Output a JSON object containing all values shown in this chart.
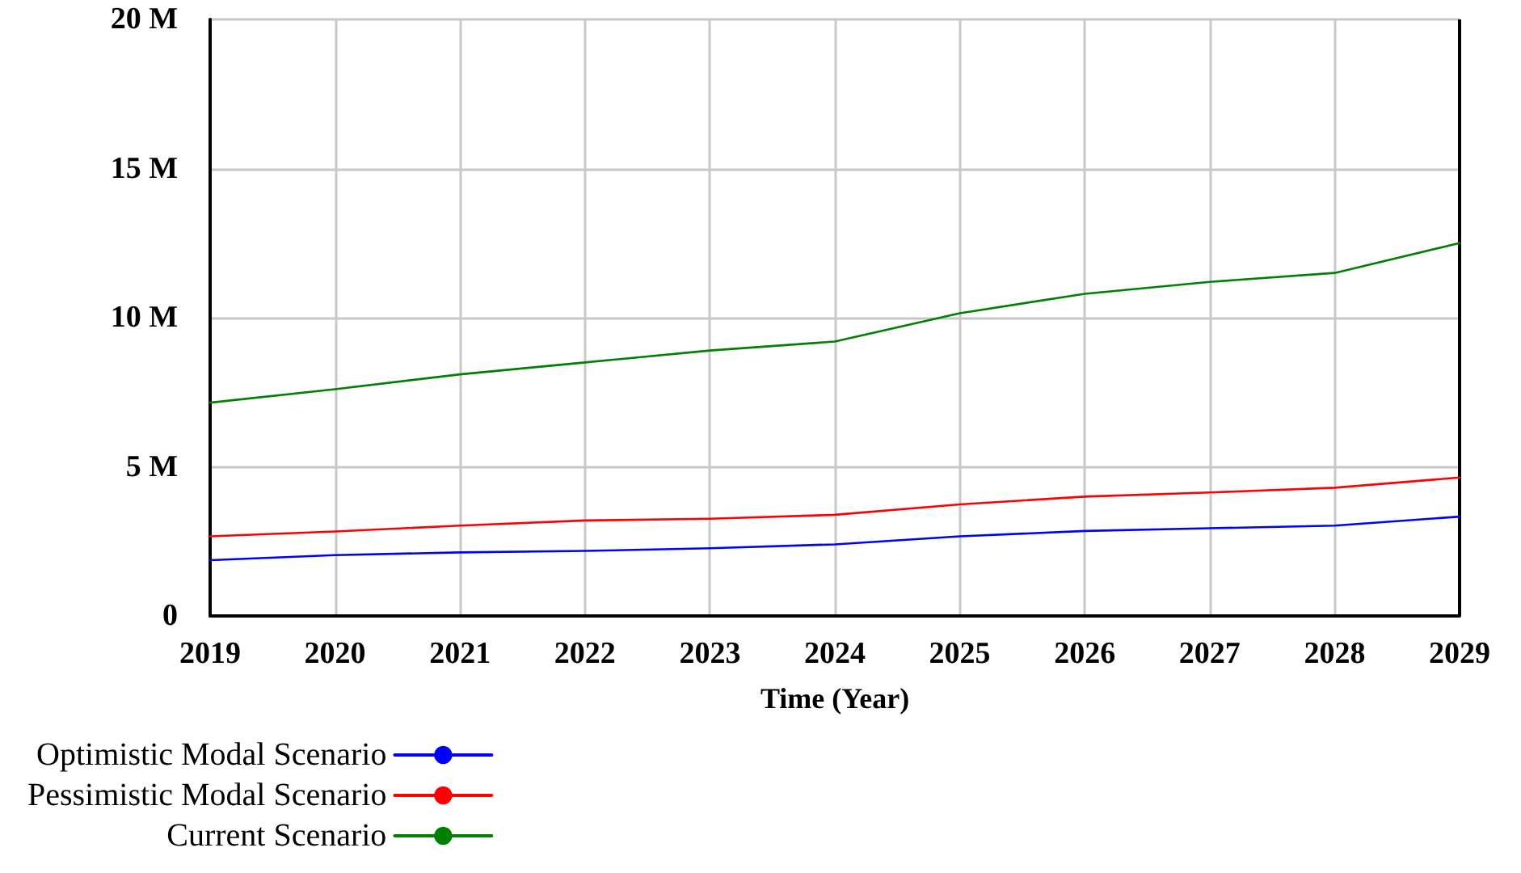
{
  "chart_data": {
    "type": "line",
    "xlabel": "Time (Year)",
    "x": [
      2019,
      2020,
      2021,
      2022,
      2023,
      2024,
      2025,
      2026,
      2027,
      2028,
      2029
    ],
    "xlim": [
      2019,
      2029
    ],
    "xticks": [
      2019,
      2020,
      2021,
      2022,
      2023,
      2024,
      2025,
      2026,
      2027,
      2028,
      2029
    ],
    "ylim": [
      0,
      20000000
    ],
    "yticks": [
      {
        "value": 0,
        "label": "0"
      },
      {
        "value": 5000000,
        "label": "5 M"
      },
      {
        "value": 10000000,
        "label": "10 M"
      },
      {
        "value": 15000000,
        "label": "15 M"
      },
      {
        "value": 20000000,
        "label": "20 M"
      }
    ],
    "grid": true,
    "legend": "bottom",
    "marker": "none",
    "line_style": "solid",
    "series": [
      {
        "name": "Optimistic Modal Scenario",
        "color": "#0000ff",
        "values": [
          1870000,
          2040000,
          2130000,
          2180000,
          2270000,
          2400000,
          2670000,
          2850000,
          2940000,
          3030000,
          3330000
        ]
      },
      {
        "name": "Pessimistic Modal Scenario",
        "color": "#ff0000",
        "values": [
          2670000,
          2830000,
          3030000,
          3200000,
          3260000,
          3390000,
          3740000,
          4000000,
          4140000,
          4300000,
          4640000
        ]
      },
      {
        "name": "Current Scenario",
        "color": "#008000",
        "values": [
          7150000,
          7600000,
          8100000,
          8500000,
          8900000,
          9200000,
          10150000,
          10800000,
          11200000,
          11500000,
          12500000
        ]
      }
    ]
  }
}
